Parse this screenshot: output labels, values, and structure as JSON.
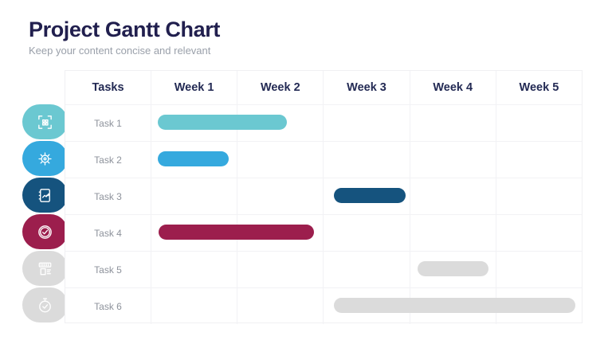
{
  "header": {
    "title": "Project Gantt Chart",
    "subtitle": "Keep your content concise and relevant"
  },
  "chart_data": {
    "type": "gantt",
    "title": "Project Gantt Chart",
    "subtitle": "Keep your content concise and relevant",
    "columns": [
      "Tasks",
      "Week 1",
      "Week 2",
      "Week 3",
      "Week 4",
      "Week 5"
    ],
    "x_axis": {
      "unit": "weeks",
      "range": [
        1,
        5
      ],
      "grid": true
    },
    "tasks": [
      {
        "label": "Task 1",
        "icon": "qr-scan-icon",
        "color": "#6BC8D1",
        "start_week": 1.07,
        "end_week": 2.57,
        "approx_span": "Week 1 to mid Week 2"
      },
      {
        "label": "Task 2",
        "icon": "gear-team-icon",
        "color": "#35A9DE",
        "start_week": 1.07,
        "end_week": 1.9,
        "approx_span": "Week 1"
      },
      {
        "label": "Task 3",
        "icon": "report-chart-icon",
        "color": "#15537E",
        "start_week": 3.12,
        "end_week": 3.95,
        "approx_span": "Week 3"
      },
      {
        "label": "Task 4",
        "icon": "check-circle-icon",
        "color": "#9C1E4D",
        "start_week": 1.08,
        "end_week": 2.89,
        "approx_span": "Week 1 to Week 2"
      },
      {
        "label": "Task 5",
        "icon": "kiosk-icon",
        "color": "#DBDBDB",
        "start_week": 4.09,
        "end_week": 4.92,
        "approx_span": "Week 4"
      },
      {
        "label": "Task 6",
        "icon": "stopwatch-icon",
        "color": "#DBDBDB",
        "start_week": 3.12,
        "end_week": 5.93,
        "approx_span": "Week 3 to Week 5"
      }
    ]
  },
  "colors": {
    "title_text": "#211F4E",
    "subtitle_text": "#9AA0AA",
    "header_text": "#232A54",
    "task_label_text": "#8D929B",
    "grid_line": "#F2F2F5",
    "bar_teal": "#6BC8D1",
    "bar_blue": "#35A9DE",
    "bar_navy": "#15537E",
    "bar_maroon": "#9C1E4D",
    "bar_gray": "#D9D9D9"
  }
}
